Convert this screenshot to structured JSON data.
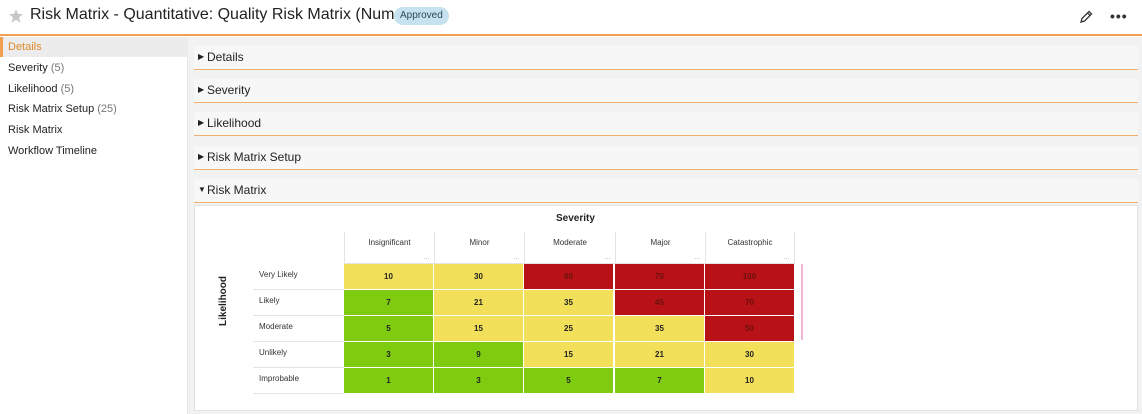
{
  "header": {
    "title": "Risk Matrix - Quantitative: Quality Risk Matrix (Numeric)",
    "status_badge": "Approved",
    "icons": [
      "star-icon",
      "pencil-icon",
      "more-icon"
    ]
  },
  "sidebar": {
    "items": [
      {
        "label": "Details",
        "count": ""
      },
      {
        "label": "Severity",
        "count": "(5)"
      },
      {
        "label": "Likelihood",
        "count": "(5)"
      },
      {
        "label": "Risk Matrix Setup",
        "count": "(25)"
      },
      {
        "label": "Risk Matrix",
        "count": ""
      },
      {
        "label": "Workflow Timeline",
        "count": ""
      }
    ]
  },
  "sections": [
    {
      "label": "Details",
      "expanded": false
    },
    {
      "label": "Severity",
      "expanded": false
    },
    {
      "label": "Likelihood",
      "expanded": false
    },
    {
      "label": "Risk Matrix Setup",
      "expanded": false
    },
    {
      "label": "Risk Matrix",
      "expanded": true
    }
  ],
  "matrix": {
    "severity_title": "Severity",
    "likelihood_title": "Likelihood",
    "columns": [
      "Insignificant",
      "Minor",
      "Moderate",
      "Major",
      "Catastrophic"
    ],
    "rows": [
      {
        "label": "Very Likely",
        "values": [
          "10",
          "30",
          "60",
          "70",
          "100"
        ],
        "colors": [
          "yellow",
          "yellow",
          "red",
          "red",
          "red"
        ]
      },
      {
        "label": "Likely",
        "values": [
          "7",
          "21",
          "35",
          "45",
          "70"
        ],
        "colors": [
          "green",
          "yellow",
          "yellow",
          "red",
          "red"
        ]
      },
      {
        "label": "Moderate",
        "values": [
          "5",
          "15",
          "25",
          "35",
          "50"
        ],
        "colors": [
          "green",
          "yellow",
          "yellow",
          "yellow",
          "red"
        ]
      },
      {
        "label": "Unlikely",
        "values": [
          "3",
          "9",
          "15",
          "21",
          "30"
        ],
        "colors": [
          "green",
          "green",
          "yellow",
          "yellow",
          "yellow"
        ]
      },
      {
        "label": "Improbable",
        "values": [
          "1",
          "3",
          "5",
          "7",
          "10"
        ],
        "colors": [
          "green",
          "green",
          "green",
          "green",
          "yellow"
        ]
      }
    ],
    "palette": {
      "green": "#7ecb10",
      "yellow": "#f2df5a",
      "red": "#b81216"
    }
  }
}
